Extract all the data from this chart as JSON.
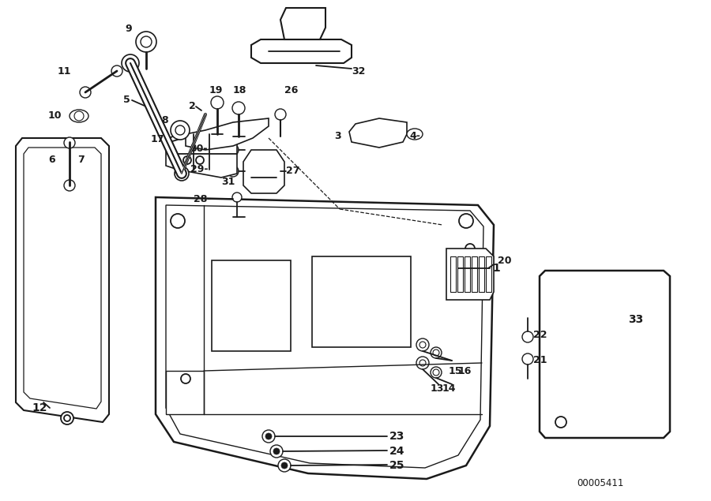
{
  "line_color": "#1a1a1a",
  "diagram_id": "00005411",
  "bg_color": "#ffffff"
}
